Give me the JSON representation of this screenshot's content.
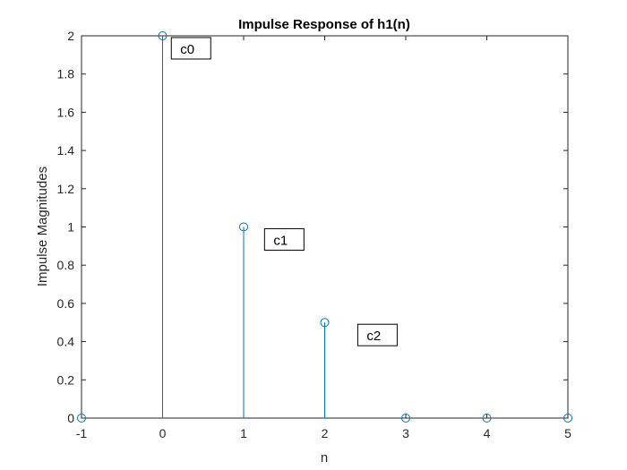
{
  "chart_data": {
    "type": "stem",
    "title": "Impulse Response of h1(n)",
    "xlabel": "n",
    "ylabel": "Impulse Magnitudes",
    "xlim": [
      -1,
      5
    ],
    "ylim": [
      0,
      2
    ],
    "xticks": [
      -1,
      0,
      1,
      2,
      3,
      4,
      5
    ],
    "xtick_labels": [
      "-1",
      "0",
      "1",
      "2",
      "3",
      "4",
      "5"
    ],
    "yticks": [
      0,
      0.2,
      0.4,
      0.6,
      0.8,
      1,
      1.2,
      1.4,
      1.6,
      1.8,
      2
    ],
    "ytick_labels": [
      "0",
      "0.2",
      "0.4",
      "0.6",
      "0.8",
      "1",
      "1.2",
      "1.4",
      "1.6",
      "1.8",
      "2"
    ],
    "grid": false,
    "x": [
      -1,
      0,
      1,
      2,
      3,
      4,
      5
    ],
    "values": [
      0,
      2,
      1,
      0.5,
      0,
      0,
      0
    ],
    "color": "#0072bd",
    "annotations": [
      {
        "text": "c0",
        "x": 0.13,
        "y": 1.93
      },
      {
        "text": "c1",
        "x": 1.28,
        "y": 0.93
      },
      {
        "text": "c2",
        "x": 2.43,
        "y": 0.43
      }
    ]
  }
}
